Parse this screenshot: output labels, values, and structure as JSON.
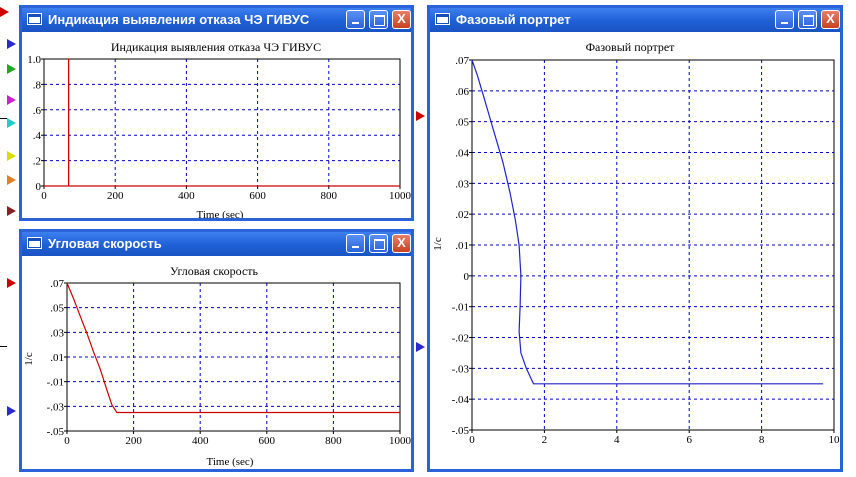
{
  "window1": {
    "title": "Индикация выявления отказа ЧЭ ГИВУС",
    "plot_title": "Индикация выявления отказа ЧЭ ГИВУС",
    "xlabel": "Time (sec)",
    "ylabel": "",
    "buttons": {
      "minimize": "_",
      "maximize": "□",
      "close": "X"
    }
  },
  "window2": {
    "title": "Угловая скорость",
    "plot_title": "Угловая скорость",
    "xlabel": "Time (sec)",
    "ylabel": "1/c",
    "buttons": {
      "minimize": "_",
      "maximize": "□",
      "close": "X"
    }
  },
  "window3": {
    "title": "Фазовый портрет",
    "plot_title": "Фазовый портрет",
    "xlabel": "",
    "ylabel": "1/c",
    "buttons": {
      "minimize": "_",
      "maximize": "□",
      "close": "X"
    }
  },
  "port_colors": [
    "#cc0000",
    "#2a2ad0",
    "#22aa22",
    "#cc22cc",
    "#22cccc",
    "#dddd00",
    "#e08020",
    "#882222",
    "#cc0000",
    "#2a2ad0",
    "#cc0000",
    "#2a2ad0"
  ],
  "chart_data": [
    {
      "type": "line",
      "title": "Индикация выявления отказа ЧЭ ГИВУС",
      "xlabel": "Time (sec)",
      "ylabel": "",
      "xlim": [
        0,
        1000
      ],
      "ylim": [
        0,
        1
      ],
      "xticks": [
        0,
        200,
        400,
        600,
        800,
        1000
      ],
      "xtick_labels": [
        "0",
        "200",
        "400",
        "600",
        "800",
        "1000"
      ],
      "yticks": [
        0,
        0.2,
        0.4,
        0.6,
        0.8,
        1.0
      ],
      "ytick_labels": [
        "0",
        ".2",
        ".4",
        ".6",
        ".8",
        "1.0"
      ],
      "grid": true,
      "color": "#cc0000",
      "series": [
        {
          "x": [
            0,
            69,
            69,
            69.5,
            69.5,
            1000
          ],
          "y": [
            0,
            0,
            1,
            1,
            0,
            0
          ]
        }
      ]
    },
    {
      "type": "line",
      "title": "Угловая скорость",
      "xlabel": "Time (sec)",
      "ylabel": "1/c",
      "xlim": [
        0,
        1000
      ],
      "ylim": [
        -0.05,
        0.07
      ],
      "xticks": [
        0,
        200,
        400,
        600,
        800,
        1000
      ],
      "xtick_labels": [
        "0",
        "200",
        "400",
        "600",
        "800",
        "1000"
      ],
      "yticks": [
        -0.05,
        -0.03,
        -0.01,
        0.01,
        0.03,
        0.05,
        0.07
      ],
      "ytick_labels": [
        "-.05",
        "-.03",
        "-.01",
        ".01",
        ".03",
        ".05",
        ".07"
      ],
      "grid": true,
      "color": "#cc0000",
      "series": [
        {
          "x": [
            0,
            20,
            40,
            60,
            80,
            100,
            120,
            135,
            150,
            1000
          ],
          "y": [
            0.07,
            0.057,
            0.043,
            0.029,
            0.014,
            0.0,
            -0.017,
            -0.029,
            -0.035,
            -0.035
          ]
        }
      ]
    },
    {
      "type": "line",
      "title": "Фазовый портрет",
      "xlabel": "",
      "ylabel": "1/c",
      "xlim": [
        0,
        10
      ],
      "ylim": [
        -0.05,
        0.07
      ],
      "xticks": [
        0,
        2,
        4,
        6,
        8,
        10
      ],
      "xtick_labels": [
        "0",
        "2",
        "4",
        "6",
        "8",
        "10"
      ],
      "yticks": [
        -0.05,
        -0.04,
        -0.03,
        -0.02,
        -0.01,
        0,
        0.01,
        0.02,
        0.03,
        0.04,
        0.05,
        0.06,
        0.07
      ],
      "ytick_labels": [
        "-.05",
        "-.04",
        "-.03",
        "-.02",
        "-.01",
        "0",
        ".01",
        ".02",
        ".03",
        ".04",
        ".05",
        ".06",
        ".07"
      ],
      "grid": true,
      "color": "#2222cc",
      "series": [
        {
          "x": [
            0,
            0.15,
            0.35,
            0.6,
            0.85,
            1.05,
            1.2,
            1.3,
            1.35,
            1.33,
            1.3,
            1.35,
            1.5,
            1.7,
            9.7
          ],
          "y": [
            0.07,
            0.065,
            0.057,
            0.047,
            0.037,
            0.027,
            0.018,
            0.01,
            0.0,
            -0.01,
            -0.018,
            -0.025,
            -0.03,
            -0.035,
            -0.035
          ]
        }
      ]
    }
  ]
}
